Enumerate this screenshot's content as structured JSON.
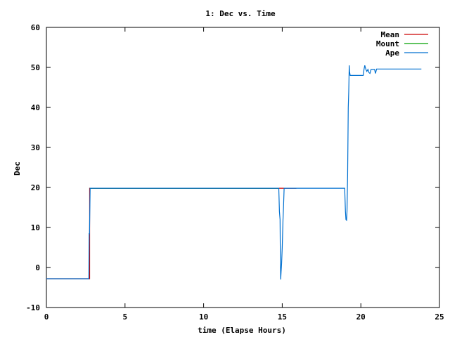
{
  "chart_data": {
    "type": "line",
    "title": "1: Dec vs. Time",
    "xlabel": "time (Elapse Hours)",
    "ylabel": "Dec",
    "xlim": [
      0,
      25
    ],
    "ylim": [
      -10,
      60
    ],
    "xticks": [
      0,
      5,
      10,
      15,
      20,
      25
    ],
    "yticks": [
      -10,
      0,
      10,
      20,
      30,
      40,
      50,
      60
    ],
    "grid": false,
    "legend_position": "top-right",
    "series": [
      {
        "name": "Mean",
        "color": "#cc0000",
        "points": [
          [
            0.0,
            -2.8
          ],
          [
            2.75,
            -2.8
          ],
          [
            2.75,
            19.8
          ],
          [
            14.78,
            19.8
          ],
          [
            15.1,
            19.8
          ],
          [
            15.9,
            19.8
          ]
        ]
      },
      {
        "name": "Mount",
        "color": "#00a000",
        "points": [
          [
            2.75,
            19.8
          ],
          [
            14.78,
            19.8
          ]
        ]
      },
      {
        "name": "Ape",
        "color": "#0070d0",
        "points": [
          [
            0.0,
            -2.8
          ],
          [
            2.7,
            -2.8
          ],
          [
            2.72,
            8.5
          ],
          [
            2.74,
            8.5
          ],
          [
            2.78,
            19.8
          ],
          [
            14.78,
            19.8
          ],
          [
            14.82,
            14.0
          ],
          [
            14.86,
            12.0
          ],
          [
            14.88,
            3.0
          ],
          [
            14.9,
            -3.0
          ],
          [
            14.93,
            -1.0
          ],
          [
            14.96,
            1.0
          ],
          [
            15.0,
            5.0
          ],
          [
            15.05,
            12.0
          ],
          [
            15.08,
            15.0
          ],
          [
            15.12,
            19.8
          ],
          [
            18.97,
            19.8
          ],
          [
            19.02,
            14.0
          ],
          [
            19.05,
            12.0
          ],
          [
            19.09,
            11.8
          ],
          [
            19.12,
            14.0
          ],
          [
            19.16,
            23.0
          ],
          [
            19.2,
            40.0
          ],
          [
            19.23,
            44.0
          ],
          [
            19.26,
            50.5
          ],
          [
            19.28,
            49.0
          ],
          [
            19.32,
            48.0
          ],
          [
            19.4,
            48.0
          ],
          [
            20.0,
            48.0
          ],
          [
            20.15,
            48.0
          ],
          [
            20.2,
            49.5
          ],
          [
            20.25,
            50.5
          ],
          [
            20.32,
            49.5
          ],
          [
            20.38,
            49.0
          ],
          [
            20.45,
            49.5
          ],
          [
            20.52,
            48.7
          ],
          [
            20.58,
            48.5
          ],
          [
            20.65,
            49.5
          ],
          [
            20.72,
            49.5
          ],
          [
            20.8,
            49.5
          ],
          [
            20.87,
            49.5
          ],
          [
            20.93,
            48.5
          ],
          [
            21.0,
            49.6
          ],
          [
            21.2,
            49.6
          ],
          [
            21.6,
            49.6
          ],
          [
            22.5,
            49.6
          ],
          [
            23.85,
            49.6
          ]
        ]
      }
    ]
  }
}
